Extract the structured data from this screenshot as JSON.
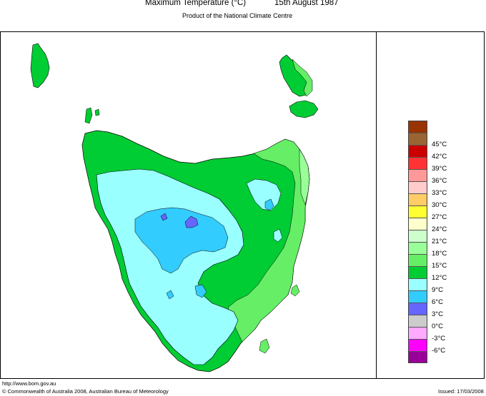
{
  "header": {
    "title": "Maximum Temperature (°C)",
    "date": "15th August 1987",
    "subtitle": "Product of the National Climate Centre"
  },
  "legend": {
    "items": [
      {
        "label": "",
        "color": "#993300"
      },
      {
        "label": "45°C",
        "color": "#996633"
      },
      {
        "label": "42°C",
        "color": "#cc0000"
      },
      {
        "label": "39°C",
        "color": "#ff3333"
      },
      {
        "label": "36°C",
        "color": "#ff9999"
      },
      {
        "label": "33°C",
        "color": "#ffcccc"
      },
      {
        "label": "30°C",
        "color": "#ffcc66"
      },
      {
        "label": "27°C",
        "color": "#ffff33"
      },
      {
        "label": "24°C",
        "color": "#ffffcc"
      },
      {
        "label": "21°C",
        "color": "#ccffcc"
      },
      {
        "label": "18°C",
        "color": "#99ff99"
      },
      {
        "label": "15°C",
        "color": "#66ee66"
      },
      {
        "label": "12°C",
        "color": "#00cc33"
      },
      {
        "label": "9°C",
        "color": "#99ffff"
      },
      {
        "label": "6°C",
        "color": "#33ccff"
      },
      {
        "label": "3°C",
        "color": "#6666ff"
      },
      {
        "label": "0°C",
        "color": "#cccccc"
      },
      {
        "label": "-3°C",
        "color": "#ffaaff"
      },
      {
        "label": "-6°C",
        "color": "#ff00ff"
      },
      {
        "label": "",
        "color": "#990099"
      }
    ]
  },
  "map": {
    "region": "Tasmania",
    "colors": {
      "zone_15_18": "#66ee66",
      "zone_12_15": "#00cc33",
      "zone_9_12": "#99ffff",
      "zone_6_9": "#33ccff",
      "zone_3_6": "#6666ff",
      "zone_18_21": "#99ff99"
    }
  },
  "footer": {
    "url": "http://www.bom.gov.au",
    "copyright": "© Commonwealth of Australia 2008, Australian Bureau of Meteorology",
    "issued": "Issued: 17/03/2008"
  }
}
